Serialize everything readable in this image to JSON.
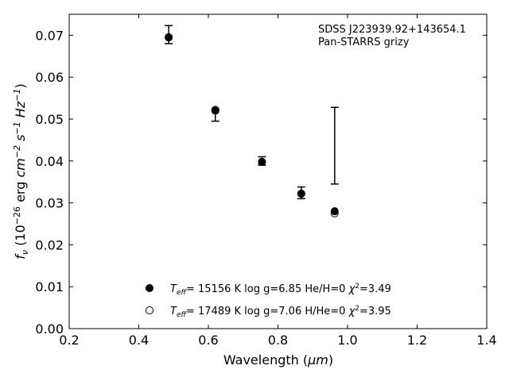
{
  "chart_data": {
    "type": "scatter",
    "annotation": {
      "line1": "SDSS J223939.92+143654.1",
      "line2": "Pan-STARRS grizy"
    },
    "xlabel": {
      "text": "Wavelength (",
      "unit": "μm",
      "close": ")"
    },
    "ylabel": {
      "f": "f",
      "nu": "ν",
      "open": " (10",
      "exp1": "−26",
      "erg": " erg ",
      "cm": "cm",
      "exp2": "−2",
      "s": " s",
      "exp3": "−1",
      "hz": " Hz",
      "exp4": "−1",
      "close": ")"
    },
    "xlim": [
      0.2,
      1.4
    ],
    "ylim": [
      0.0,
      0.075
    ],
    "xticks": [
      "0.2",
      "0.4",
      "0.6",
      "0.8",
      "1.0",
      "1.2",
      "1.4"
    ],
    "yticks": [
      "0.00",
      "0.01",
      "0.02",
      "0.03",
      "0.04",
      "0.05",
      "0.06",
      "0.07"
    ],
    "grid": false,
    "legend_position": "bottom-center",
    "observed": [
      {
        "x": 0.486,
        "y": 0.07,
        "ylo": 0.068,
        "yhi": 0.0723
      },
      {
        "x": 0.62,
        "y": 0.052,
        "ylo": 0.0495,
        "yhi": 0.0522
      },
      {
        "x": 0.754,
        "y": 0.04,
        "ylo": 0.039,
        "yhi": 0.041
      },
      {
        "x": 0.867,
        "y": 0.0325,
        "ylo": 0.031,
        "yhi": 0.0338
      },
      {
        "x": 0.963,
        "y": 0.0365,
        "ylo": 0.0345,
        "yhi": 0.0528
      }
    ],
    "series": [
      {
        "marker": "filled",
        "legend": {
          "tsym": "T",
          "tsub": "eff",
          "rest": "= 15156 K  log g=6.85  He/H=0  ",
          "chi": "χ",
          "chisup": "2",
          "chival": "=3.49"
        },
        "x": [
          0.486,
          0.62,
          0.754,
          0.867,
          0.963
        ],
        "y": [
          0.0695,
          0.0522,
          0.0398,
          0.0322,
          0.028
        ]
      },
      {
        "marker": "open",
        "legend": {
          "tsym": "T",
          "tsub": "eff",
          "rest": "= 17489 K  log g=7.06  H/He=0  ",
          "chi": "χ",
          "chisup": "2",
          "chival": "=3.95"
        },
        "x": [
          0.486,
          0.62,
          0.754,
          0.867,
          0.963
        ],
        "y": [
          0.0695,
          0.052,
          0.0398,
          0.0322,
          0.0275
        ]
      }
    ]
  }
}
